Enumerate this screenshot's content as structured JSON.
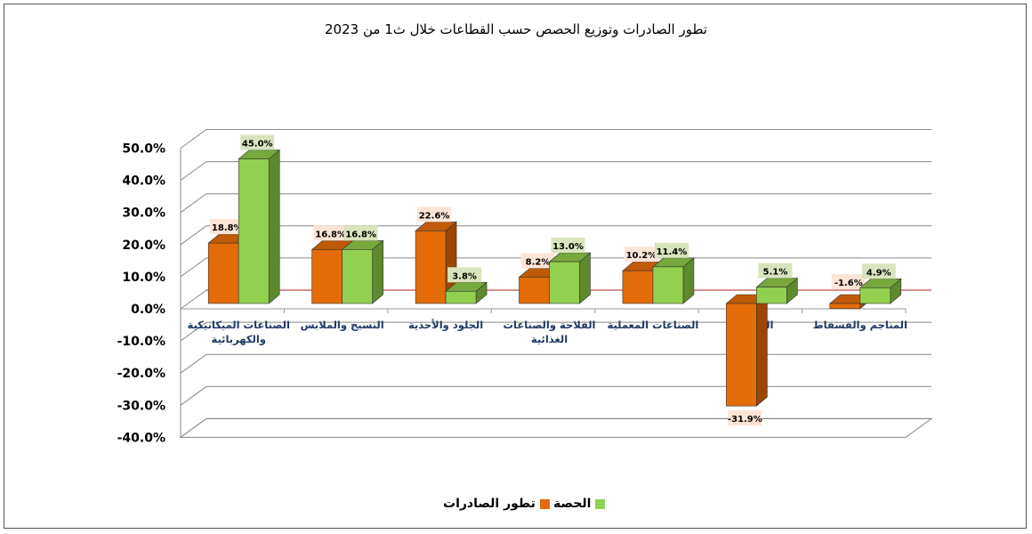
{
  "chart_data": {
    "type": "bar",
    "title": "تطور الصادرات وتوزيع الحصص حسب القطاعات خلال ث1 من 2023",
    "categories": [
      "الصناعات الميكانيكية والكهربائية",
      "النسيج والملابس",
      "الجلود والأحذية",
      "الفلاحة والصناعات الغذائية",
      "الصناعات المعملية",
      "الطاقة",
      "المناجم والفسفاط"
    ],
    "series": [
      {
        "name": "تطور الصادرات",
        "color": "#E36C09",
        "values": [
          18.8,
          16.8,
          22.6,
          8.2,
          10.2,
          -31.9,
          -1.6
        ],
        "labels": [
          "18.8%",
          "16.8%",
          "22.6%",
          "8.2%",
          "10.2%",
          "-31.9%",
          "-1.6%"
        ]
      },
      {
        "name": "الحصة",
        "color": "#92D050",
        "values": [
          45.0,
          16.8,
          3.8,
          13.0,
          11.4,
          5.1,
          4.9
        ],
        "labels": [
          "45.0%",
          "16.8%",
          "3.8%",
          "13.0%",
          "11.4%",
          "5.1%",
          "4.9%"
        ]
      }
    ],
    "ylim": [
      -40,
      50
    ],
    "yticks": [
      "50.0%",
      "40.0%",
      "30.0%",
      "20.0%",
      "10.0%",
      "0.0%",
      "-10.0%",
      "-20.0%",
      "-30.0%",
      "-40.0%"
    ],
    "grid": true,
    "legend": "bottom",
    "chart_style": "3d-clustered-column"
  }
}
